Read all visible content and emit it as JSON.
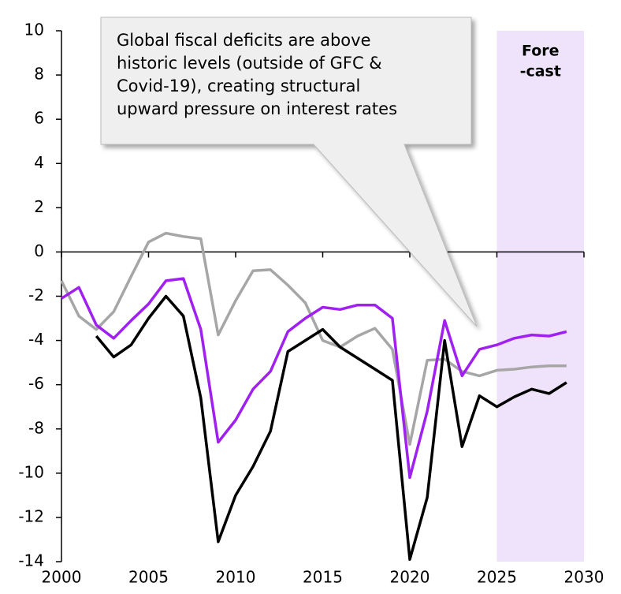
{
  "chart_data": {
    "type": "line",
    "x": [
      2000,
      2001,
      2002,
      2003,
      2004,
      2005,
      2006,
      2007,
      2008,
      2009,
      2010,
      2011,
      2012,
      2013,
      2014,
      2015,
      2016,
      2017,
      2018,
      2019,
      2020,
      2021,
      2022,
      2023,
      2024,
      2025,
      2026,
      2027,
      2028,
      2029
    ],
    "series": [
      {
        "color": "#a6a6a6",
        "values": [
          -1.3,
          -2.9,
          -3.5,
          -2.7,
          -1.1,
          0.45,
          0.85,
          0.7,
          0.6,
          -3.75,
          -2.2,
          -0.85,
          -0.8,
          -1.5,
          -2.3,
          -4.0,
          -4.3,
          -3.8,
          -3.45,
          -4.4,
          -8.7,
          -4.9,
          -4.85,
          -5.4,
          -5.6,
          -5.35,
          -5.3,
          -5.2,
          -5.15,
          -5.15
        ]
      },
      {
        "color": "#000000",
        "values": [
          null,
          null,
          -3.8,
          -4.75,
          -4.2,
          -3.0,
          -2.0,
          -2.9,
          -6.6,
          -13.1,
          -11.0,
          -9.7,
          -8.1,
          -4.5,
          -4.0,
          -3.5,
          -4.3,
          -4.8,
          -5.3,
          -5.8,
          -13.9,
          -11.1,
          -4.0,
          -8.8,
          -6.5,
          -7.0,
          -6.55,
          -6.2,
          -6.4,
          -5.9
        ]
      },
      {
        "color": "#a020f0",
        "values": [
          -2.1,
          -1.6,
          -3.3,
          -3.9,
          -3.1,
          -2.35,
          -1.3,
          -1.2,
          -3.5,
          -8.6,
          -7.6,
          -6.2,
          -5.4,
          -3.6,
          -3.0,
          -2.5,
          -2.6,
          -2.4,
          -2.4,
          -3.0,
          -10.2,
          -7.2,
          -3.1,
          -5.6,
          -4.4,
          -4.2,
          -3.9,
          -3.75,
          -3.8,
          -3.6
        ]
      }
    ],
    "xlim": [
      2000,
      2030
    ],
    "xticks": [
      2000,
      2005,
      2010,
      2015,
      2020,
      2025,
      2030
    ],
    "ylim": [
      -14,
      10
    ],
    "yticks": [
      -14,
      -12,
      -10,
      -8,
      -6,
      -4,
      -2,
      0,
      2,
      4,
      6,
      8,
      10
    ],
    "shade": {
      "from": 2025,
      "to": 2030,
      "color": "#efe3fb",
      "label": [
        "Fore",
        "-cast"
      ]
    },
    "annotation": [
      "Global fiscal deficits are above",
      "historic levels (outside of GFC &",
      "Covid-19), creating structural",
      "upward pressure on interest rates"
    ]
  }
}
